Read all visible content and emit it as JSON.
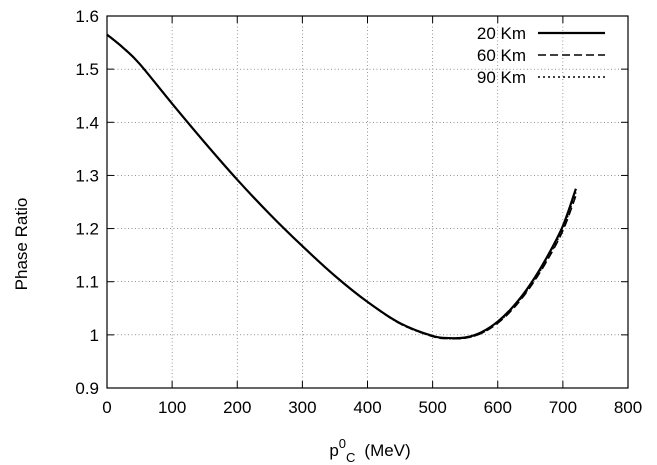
{
  "chart_data": {
    "type": "line",
    "title": "",
    "ylabel": "Phase Ratio",
    "xlabel": {
      "base": "p",
      "sup": "0",
      "sub": "C",
      "unit": "(MeV)"
    },
    "xlim": [
      0,
      800
    ],
    "ylim": [
      0.9,
      1.6
    ],
    "grid": true,
    "legend_position": "top-right",
    "x_ticks": [
      0,
      100,
      200,
      300,
      400,
      500,
      600,
      700,
      800
    ],
    "x_tick_labels": [
      "0",
      "100",
      "200",
      "300",
      "400",
      "500",
      "600",
      "700",
      "800"
    ],
    "y_ticks": [
      0.9,
      1.0,
      1.1,
      1.2,
      1.3,
      1.4,
      1.5,
      1.6
    ],
    "y_tick_labels": [
      "0.9",
      "1",
      "1.1",
      "1.2",
      "1.3",
      "1.4",
      "1.5",
      "1.6"
    ],
    "series": [
      {
        "name": "20 Km",
        "style": "solid",
        "color": "#000000",
        "x": [
          0,
          25,
          50,
          100,
          150,
          200,
          250,
          300,
          350,
          400,
          450,
          500,
          525,
          550,
          575,
          600,
          625,
          650,
          675,
          700,
          720
        ],
        "y": [
          1.565,
          1.54,
          1.51,
          1.435,
          1.362,
          1.292,
          1.227,
          1.167,
          1.111,
          1.062,
          1.022,
          0.998,
          0.994,
          0.995,
          1.005,
          1.025,
          1.055,
          1.095,
          1.145,
          1.205,
          1.275
        ]
      },
      {
        "name": "60 Km",
        "style": "dashed",
        "color": "#000000",
        "x": [
          0,
          25,
          50,
          100,
          150,
          200,
          250,
          300,
          350,
          400,
          450,
          500,
          525,
          550,
          575,
          600,
          625,
          650,
          675,
          700,
          720
        ],
        "y": [
          1.565,
          1.54,
          1.51,
          1.435,
          1.362,
          1.292,
          1.227,
          1.167,
          1.111,
          1.062,
          1.021,
          0.997,
          0.993,
          0.994,
          1.003,
          1.022,
          1.051,
          1.09,
          1.138,
          1.196,
          1.262
        ]
      },
      {
        "name": "90 Km",
        "style": "dotted",
        "color": "#000000",
        "x": [
          0,
          25,
          50,
          100,
          150,
          200,
          250,
          300,
          350,
          400,
          450,
          500,
          525,
          550,
          575,
          600,
          625,
          650,
          675,
          700,
          720
        ],
        "y": [
          1.565,
          1.54,
          1.51,
          1.435,
          1.362,
          1.292,
          1.227,
          1.167,
          1.111,
          1.062,
          1.021,
          0.997,
          0.993,
          0.994,
          1.003,
          1.023,
          1.053,
          1.092,
          1.141,
          1.2,
          1.268
        ]
      }
    ]
  }
}
